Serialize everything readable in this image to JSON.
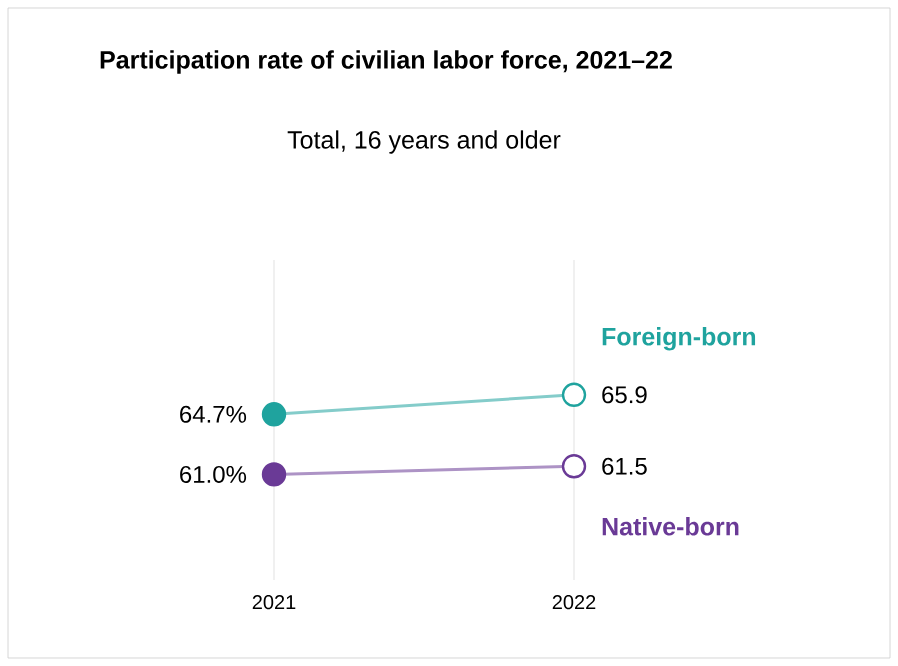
{
  "chart_data": {
    "type": "line",
    "title": "Participation rate of civilian labor force, 2021–22",
    "subtitle": "Total, 16 years and older",
    "categories": [
      "2021",
      "2022"
    ],
    "series": [
      {
        "name": "Foreign-born",
        "color": "#1fa39e",
        "values": [
          64.7,
          65.9
        ],
        "value_labels": [
          "64.7%",
          "65.9"
        ]
      },
      {
        "name": "Native-born",
        "color": "#6a3a96",
        "values": [
          61.0,
          61.5
        ],
        "value_labels": [
          "61.0%",
          "61.5"
        ]
      }
    ],
    "grid": "x",
    "marker": "circle"
  }
}
